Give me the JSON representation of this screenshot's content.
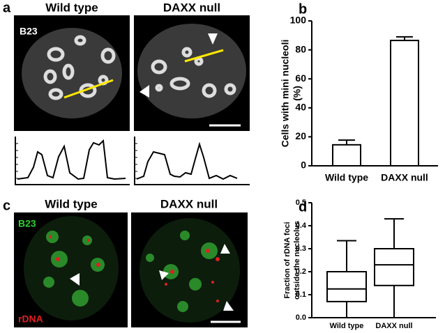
{
  "panel_labels": [
    "a",
    "b",
    "c",
    "d"
  ],
  "images": {
    "a": [
      {
        "title": "Wild type",
        "stain": "B23"
      },
      {
        "title": "DAXX null"
      }
    ],
    "c": [
      {
        "title": "Wild type",
        "stains": [
          "B23",
          "rDNA"
        ]
      },
      {
        "title": "DAXX null"
      }
    ]
  },
  "chart_data": [
    {
      "type": "bar",
      "categories": [
        "Wild type",
        "DAXX null"
      ],
      "values": [
        14.5,
        86.5
      ],
      "errors": [
        3.2,
        2.5
      ],
      "color": "#ffffff",
      "ylabel": [
        "Cells with mini nucleoli",
        "(%)"
      ],
      "ylim": [
        0,
        100
      ],
      "yticks": [
        0,
        20,
        40,
        60,
        80,
        100
      ]
    },
    {
      "type": "box",
      "categories": [
        "Wild type",
        "DAXX null"
      ],
      "whisker_low": [
        0.0,
        0.0
      ],
      "q1": [
        0.07,
        0.14
      ],
      "median": [
        0.125,
        0.23
      ],
      "q3": [
        0.2,
        0.3
      ],
      "whisker_high": [
        0.335,
        0.43
      ],
      "color": "#ffffff",
      "ylabel": [
        "Fraction of rDNA foci",
        "outside the nucleolus"
      ],
      "ylim": [
        0,
        0.5
      ],
      "yticks": [
        {
          "value": 0,
          "label": "0.0"
        },
        0.1,
        0.2,
        0.3,
        0.4,
        0.5
      ]
    }
  ]
}
